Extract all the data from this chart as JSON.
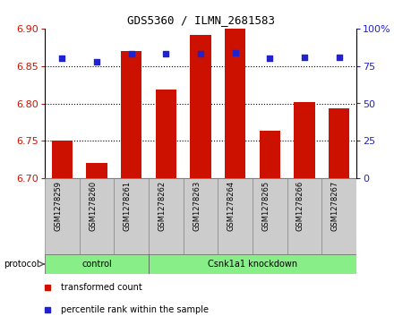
{
  "title": "GDS5360 / ILMN_2681583",
  "samples": [
    "GSM1278259",
    "GSM1278260",
    "GSM1278261",
    "GSM1278262",
    "GSM1278263",
    "GSM1278264",
    "GSM1278265",
    "GSM1278266",
    "GSM1278267"
  ],
  "bar_values": [
    6.75,
    6.72,
    6.87,
    6.818,
    6.892,
    6.902,
    6.764,
    6.802,
    6.793
  ],
  "percentile_values": [
    80,
    78,
    83,
    83,
    83,
    84,
    80,
    81,
    81
  ],
  "bar_color": "#cc1100",
  "dot_color": "#2222cc",
  "ylim_left": [
    6.7,
    6.9
  ],
  "ylim_right": [
    0,
    100
  ],
  "yticks_left": [
    6.7,
    6.75,
    6.8,
    6.85,
    6.9
  ],
  "yticks_right": [
    0,
    25,
    50,
    75,
    100
  ],
  "ytick_labels_right": [
    "0",
    "25",
    "50",
    "75",
    "100%"
  ],
  "grid_values": [
    6.75,
    6.8,
    6.85
  ],
  "control_count": 3,
  "knockdown_label": "Csnk1a1 knockdown",
  "control_label": "control",
  "protocol_label": "protocol",
  "legend_items": [
    {
      "label": "transformed count",
      "color": "#cc1100"
    },
    {
      "label": "percentile rank within the sample",
      "color": "#2222cc"
    }
  ],
  "bar_width": 0.6,
  "tick_area_color": "#cccccc",
  "protocol_color": "#88ee88"
}
